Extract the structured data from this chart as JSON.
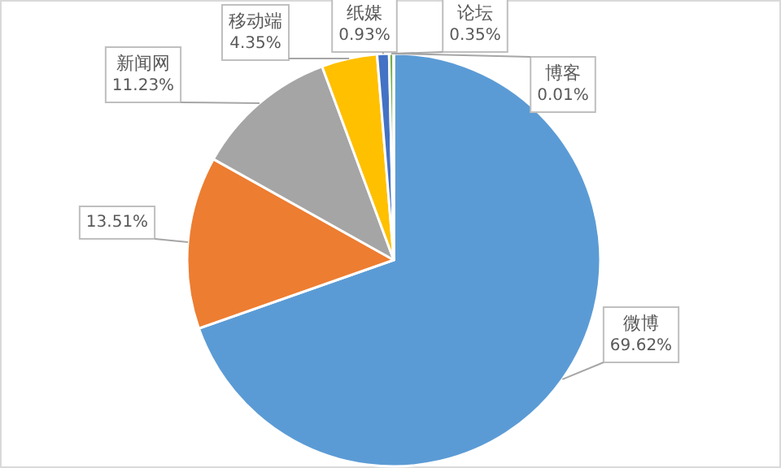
{
  "chart_data": {
    "type": "pie",
    "categories": [
      "微博",
      null,
      "新闻网",
      "移动端",
      "纸媒",
      "论坛",
      "博客"
    ],
    "values": [
      69.62,
      13.51,
      11.23,
      4.35,
      0.93,
      0.35,
      0.01
    ],
    "colors": [
      "#5b9bd5",
      "#ed7d31",
      "#a5a5a5",
      "#ffc000",
      "#4472c4",
      "#70ad47",
      "#255e91"
    ],
    "value_labels": [
      "69.62%",
      "13.51%",
      "11.23%",
      "4.35%",
      "0.93%",
      "0.35%",
      "0.01%"
    ]
  }
}
